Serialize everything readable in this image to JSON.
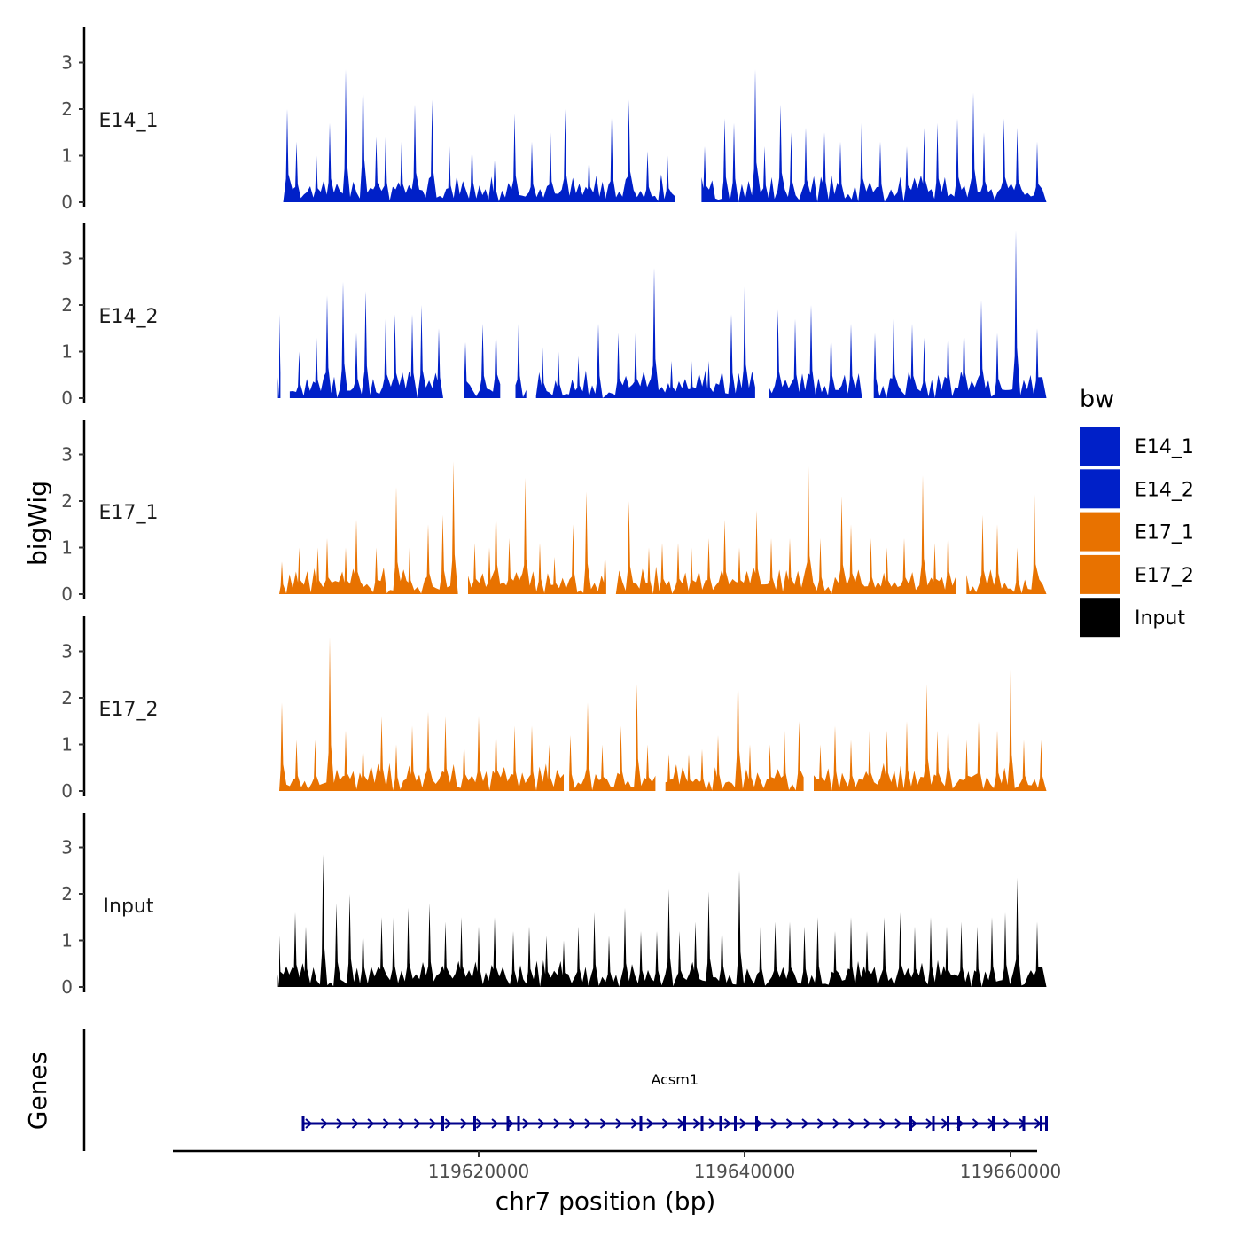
{
  "chart_data": {
    "type": "area",
    "x_axis": {
      "title": "chr7 position (bp)",
      "range": [
        119597000,
        119662000
      ],
      "ticks": [
        119620000,
        119640000,
        119660000
      ],
      "tick_labels": [
        "119620000",
        "119640000",
        "119660000"
      ]
    },
    "y_axis": {
      "title": "bigWig",
      "range": [
        0,
        3.8
      ],
      "ticks": [
        0,
        1,
        2,
        3
      ],
      "tick_labels": [
        "0",
        "1",
        "2",
        "3"
      ]
    },
    "signal_extent": [
      119605000,
      119662700
    ],
    "tracks": [
      {
        "name": "E14_1",
        "color": "#0020C8",
        "gaps": [
          [
            119634800,
            119636700
          ]
        ],
        "peaks": [
          [
            119605600,
            2.0
          ],
          [
            119606300,
            1.3
          ],
          [
            119607800,
            1.0
          ],
          [
            119608800,
            1.7
          ],
          [
            119610000,
            2.85
          ],
          [
            119611300,
            3.1
          ],
          [
            119612300,
            1.4
          ],
          [
            119613000,
            1.4
          ],
          [
            119614200,
            1.3
          ],
          [
            119615200,
            2.1
          ],
          [
            119616500,
            2.2
          ],
          [
            119617800,
            1.2
          ],
          [
            119619500,
            1.4
          ],
          [
            119621200,
            0.9
          ],
          [
            119622700,
            1.9
          ],
          [
            119624000,
            1.3
          ],
          [
            119625400,
            1.5
          ],
          [
            119626500,
            2.0
          ],
          [
            119628300,
            1.1
          ],
          [
            119630000,
            1.8
          ],
          [
            119631300,
            2.2
          ],
          [
            119632700,
            1.1
          ],
          [
            119634200,
            1.0
          ],
          [
            119635700,
            1.5
          ],
          [
            119637000,
            1.2
          ],
          [
            119638500,
            1.8
          ],
          [
            119639200,
            1.7
          ],
          [
            119640800,
            2.85
          ],
          [
            119641500,
            1.2
          ],
          [
            119642700,
            2.1
          ],
          [
            119643500,
            1.5
          ],
          [
            119644600,
            1.6
          ],
          [
            119646000,
            1.5
          ],
          [
            119647200,
            1.3
          ],
          [
            119648800,
            1.7
          ],
          [
            119650200,
            1.3
          ],
          [
            119652200,
            1.2
          ],
          [
            119653500,
            1.6
          ],
          [
            119654500,
            1.7
          ],
          [
            119656000,
            1.8
          ],
          [
            119657200,
            2.35
          ],
          [
            119658000,
            1.5
          ],
          [
            119659500,
            1.8
          ],
          [
            119660500,
            1.6
          ],
          [
            119662000,
            1.3
          ]
        ]
      },
      {
        "name": "E14_2",
        "color": "#0020C8",
        "gaps": [
          [
            119605300,
            119605700
          ],
          [
            119617400,
            119618900
          ],
          [
            119621800,
            119622600
          ],
          [
            119623600,
            119624100
          ],
          [
            119641000,
            119641800
          ],
          [
            119649000,
            119649600
          ]
        ],
        "peaks": [
          [
            119605000,
            1.8
          ],
          [
            119606500,
            1.0
          ],
          [
            119607800,
            1.3
          ],
          [
            119608600,
            2.2
          ],
          [
            119609800,
            2.5
          ],
          [
            119610800,
            1.4
          ],
          [
            119611500,
            2.3
          ],
          [
            119613000,
            1.7
          ],
          [
            119613700,
            1.8
          ],
          [
            119615000,
            1.8
          ],
          [
            119615700,
            2.0
          ],
          [
            119617000,
            1.5
          ],
          [
            119619000,
            1.2
          ],
          [
            119620300,
            1.6
          ],
          [
            119621300,
            1.7
          ],
          [
            119623000,
            1.6
          ],
          [
            119624800,
            1.1
          ],
          [
            119626000,
            1.0
          ],
          [
            119627500,
            0.9
          ],
          [
            119629000,
            1.6
          ],
          [
            119630500,
            1.4
          ],
          [
            119631800,
            1.4
          ],
          [
            119633200,
            2.8
          ],
          [
            119634500,
            0.8
          ],
          [
            119636000,
            0.8
          ],
          [
            119637300,
            0.8
          ],
          [
            119639000,
            1.8
          ],
          [
            119640000,
            2.4
          ],
          [
            119641500,
            1.5
          ],
          [
            119642500,
            1.9
          ],
          [
            119643800,
            1.7
          ],
          [
            119645000,
            2.0
          ],
          [
            119646500,
            1.6
          ],
          [
            119648000,
            1.6
          ],
          [
            119649800,
            1.4
          ],
          [
            119651200,
            1.7
          ],
          [
            119652600,
            1.6
          ],
          [
            119653500,
            1.3
          ],
          [
            119655300,
            1.7
          ],
          [
            119656500,
            1.8
          ],
          [
            119657800,
            2.1
          ],
          [
            119659000,
            1.4
          ],
          [
            119660400,
            3.6
          ],
          [
            119662000,
            1.5
          ]
        ]
      },
      {
        "name": "E17_1",
        "color": "#E87200",
        "gaps": [
          [
            119618600,
            119619000
          ],
          [
            119629700,
            119630200
          ],
          [
            119655900,
            119656600
          ]
        ],
        "peaks": [
          [
            119605200,
            0.7
          ],
          [
            119606500,
            1.0
          ],
          [
            119607900,
            1.0
          ],
          [
            119608600,
            1.2
          ],
          [
            119610000,
            1.0
          ],
          [
            119610800,
            1.6
          ],
          [
            119612300,
            1.0
          ],
          [
            119613800,
            2.3
          ],
          [
            119614800,
            1.0
          ],
          [
            119616200,
            1.5
          ],
          [
            119617300,
            1.7
          ],
          [
            119618100,
            2.85
          ],
          [
            119619700,
            1.1
          ],
          [
            119620800,
            1.0
          ],
          [
            119621300,
            2.1
          ],
          [
            119622300,
            1.2
          ],
          [
            119623500,
            2.5
          ],
          [
            119624600,
            1.1
          ],
          [
            119625700,
            0.8
          ],
          [
            119627100,
            1.5
          ],
          [
            119628100,
            2.2
          ],
          [
            119629500,
            1.0
          ],
          [
            119631300,
            2.0
          ],
          [
            119632800,
            1.0
          ],
          [
            119633800,
            1.1
          ],
          [
            119635000,
            1.1
          ],
          [
            119636000,
            1.0
          ],
          [
            119637300,
            1.2
          ],
          [
            119638500,
            1.6
          ],
          [
            119639600,
            1.0
          ],
          [
            119640900,
            1.8
          ],
          [
            119642000,
            1.2
          ],
          [
            119643400,
            1.2
          ],
          [
            119644800,
            2.75
          ],
          [
            119645700,
            1.2
          ],
          [
            119647300,
            2.1
          ],
          [
            119648000,
            1.5
          ],
          [
            119649500,
            1.2
          ],
          [
            119650700,
            1.0
          ],
          [
            119652000,
            1.2
          ],
          [
            119653400,
            2.55
          ],
          [
            119654300,
            1.1
          ],
          [
            119655300,
            1.6
          ],
          [
            119656600,
            1.4
          ],
          [
            119657900,
            1.7
          ],
          [
            119659000,
            1.5
          ],
          [
            119660500,
            1.0
          ],
          [
            119661800,
            2.15
          ]
        ]
      },
      {
        "name": "E17_2",
        "color": "#E87200",
        "gaps": [
          [
            119626400,
            119626800
          ],
          [
            119633500,
            119634000
          ],
          [
            119644600,
            119645000
          ]
        ],
        "peaks": [
          [
            119605200,
            1.9
          ],
          [
            119606300,
            1.1
          ],
          [
            119607700,
            1.1
          ],
          [
            119608800,
            3.3
          ],
          [
            119610000,
            1.3
          ],
          [
            119611300,
            1.1
          ],
          [
            119612700,
            1.6
          ],
          [
            119613800,
            1.0
          ],
          [
            119615000,
            1.4
          ],
          [
            119616200,
            1.7
          ],
          [
            119617500,
            1.6
          ],
          [
            119618900,
            1.2
          ],
          [
            119620000,
            1.6
          ],
          [
            119621300,
            1.5
          ],
          [
            119622700,
            1.4
          ],
          [
            119624000,
            1.4
          ],
          [
            119625300,
            1.0
          ],
          [
            119626900,
            1.2
          ],
          [
            119628200,
            1.9
          ],
          [
            119629300,
            1.0
          ],
          [
            119630700,
            1.4
          ],
          [
            119631900,
            2.3
          ],
          [
            119632700,
            1.0
          ],
          [
            119634300,
            0.8
          ],
          [
            119635800,
            0.8
          ],
          [
            119636800,
            0.9
          ],
          [
            119638000,
            1.2
          ],
          [
            119639500,
            2.9
          ],
          [
            119640400,
            1.0
          ],
          [
            119641900,
            1.0
          ],
          [
            119643000,
            1.3
          ],
          [
            119644100,
            1.5
          ],
          [
            119645700,
            1.0
          ],
          [
            119646800,
            1.4
          ],
          [
            119648000,
            1.1
          ],
          [
            119649400,
            1.3
          ],
          [
            119650700,
            1.3
          ],
          [
            119652200,
            1.5
          ],
          [
            119653700,
            2.3
          ],
          [
            119654500,
            1.3
          ],
          [
            119655300,
            1.7
          ],
          [
            119656700,
            1.1
          ],
          [
            119657600,
            1.5
          ],
          [
            119659000,
            1.3
          ],
          [
            119660000,
            2.6
          ],
          [
            119661000,
            1.1
          ],
          [
            119662300,
            1.1
          ]
        ]
      },
      {
        "name": "Input",
        "color": "#000000",
        "gaps": [],
        "peaks": [
          [
            119605000,
            1.1
          ],
          [
            119606200,
            1.6
          ],
          [
            119607000,
            1.3
          ],
          [
            119608300,
            2.85
          ],
          [
            119609300,
            1.8
          ],
          [
            119610300,
            2.0
          ],
          [
            119611300,
            1.4
          ],
          [
            119612700,
            1.5
          ],
          [
            119613600,
            1.5
          ],
          [
            119614700,
            1.7
          ],
          [
            119616300,
            1.8
          ],
          [
            119617500,
            1.4
          ],
          [
            119618700,
            1.5
          ],
          [
            119620000,
            1.3
          ],
          [
            119621200,
            1.5
          ],
          [
            119622600,
            1.2
          ],
          [
            119623800,
            1.3
          ],
          [
            119625100,
            1.1
          ],
          [
            119626400,
            1.0
          ],
          [
            119627500,
            1.3
          ],
          [
            119628700,
            1.6
          ],
          [
            119629800,
            1.1
          ],
          [
            119631000,
            1.7
          ],
          [
            119632200,
            1.2
          ],
          [
            119633400,
            1.2
          ],
          [
            119634300,
            2.1
          ],
          [
            119635100,
            1.2
          ],
          [
            119636300,
            1.4
          ],
          [
            119637300,
            2.05
          ],
          [
            119638300,
            1.5
          ],
          [
            119639600,
            2.5
          ],
          [
            119641200,
            1.3
          ],
          [
            119642300,
            1.4
          ],
          [
            119643400,
            1.4
          ],
          [
            119644500,
            1.3
          ],
          [
            119645500,
            1.5
          ],
          [
            119646800,
            1.2
          ],
          [
            119648000,
            1.5
          ],
          [
            119649200,
            1.2
          ],
          [
            119650500,
            1.5
          ],
          [
            119651700,
            1.6
          ],
          [
            119652800,
            1.3
          ],
          [
            119654000,
            1.5
          ],
          [
            119655200,
            1.3
          ],
          [
            119656300,
            1.4
          ],
          [
            119657500,
            1.3
          ],
          [
            119658600,
            1.5
          ],
          [
            119659600,
            1.6
          ],
          [
            119660500,
            2.35
          ],
          [
            119662000,
            1.4
          ]
        ]
      }
    ],
    "legend": {
      "title": "bw",
      "placement": "right",
      "entries": [
        {
          "label": "E14_1",
          "color": "#0020C8"
        },
        {
          "label": "E14_2",
          "color": "#0020C8"
        },
        {
          "label": "E17_1",
          "color": "#E87200"
        },
        {
          "label": "E17_2",
          "color": "#E87200"
        },
        {
          "label": "Input",
          "color": "#000000"
        }
      ]
    },
    "gene_track": {
      "title": "Genes",
      "gene_name": "Acsm1",
      "start": 119606800,
      "end": 119662700,
      "strand": "+",
      "color": "#00008B",
      "exons": [
        119606800,
        119617300,
        119619700,
        119622200,
        119623000,
        119632200,
        119635500,
        119636800,
        119638200,
        119639300,
        119640900,
        119652500,
        119654200,
        119655300,
        119656100,
        119658700,
        119661000,
        119662300,
        119662700
      ]
    }
  }
}
